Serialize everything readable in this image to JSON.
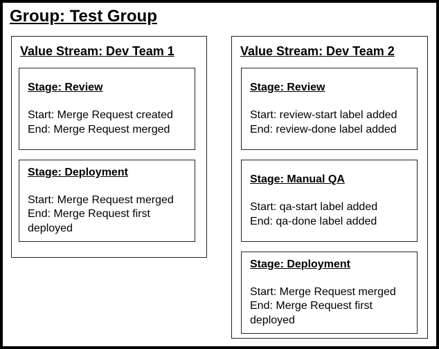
{
  "group": {
    "title": "Group: Test Group"
  },
  "value_streams": [
    {
      "title": "Value Stream: Dev Team 1",
      "stages": [
        {
          "title": "Stage: Review",
          "start": "Start: Merge Request created",
          "end": "End: Merge Request merged"
        },
        {
          "title": "Stage: Deployment",
          "start": "Start: Merge Request merged",
          "end": "End: Merge Request first deployed"
        }
      ]
    },
    {
      "title": "Value Stream: Dev Team 2",
      "stages": [
        {
          "title": "Stage: Review",
          "start": "Start: review-start label added",
          "end": "End: review-done label added"
        },
        {
          "title": "Stage: Manual QA",
          "start": "Start: qa-start label added",
          "end": "End: qa-done label added"
        },
        {
          "title": "Stage: Deployment",
          "start": "Start: Merge Request merged",
          "end": "End: Merge Request first deployed"
        }
      ]
    }
  ]
}
